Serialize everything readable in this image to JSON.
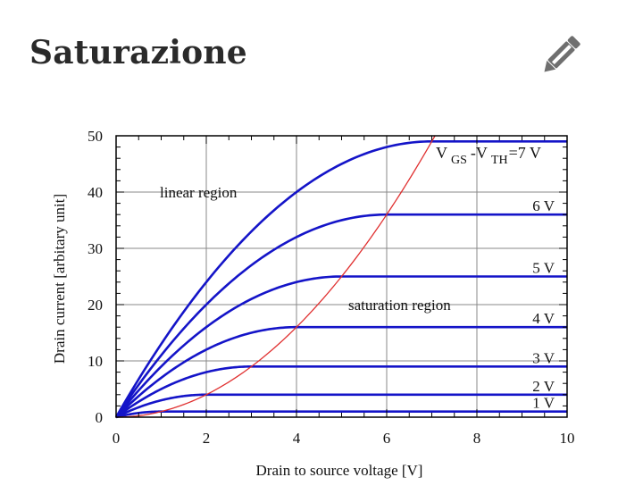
{
  "page": {
    "title": "Saturazione",
    "edit_icon": "pencil-icon",
    "edit_color": "#6f6f6f"
  },
  "chart_data": {
    "type": "line",
    "title": "",
    "xlabel": "Drain to source voltage [V]",
    "ylabel": "Drain current [arbitary unit]",
    "xlim": [
      0,
      10
    ],
    "ylim": [
      0,
      50
    ],
    "xticks": [
      0,
      2,
      4,
      6,
      8,
      10
    ],
    "yticks": [
      0,
      10,
      20,
      30,
      40,
      50
    ],
    "grid": true,
    "annotations": {
      "linear_region": "linear region",
      "saturation_region": "saturation region",
      "vgs_prefix": "V",
      "vgs_sub": "GS",
      "vgs_mid": "-V",
      "vth_sub": "TH",
      "vgs_suffix": "=7 V"
    },
    "colors": {
      "curves": "#1414c8",
      "boundary": "#e03030",
      "grid": "#888888"
    },
    "series": [
      {
        "label": "1 V",
        "vov": 1,
        "saturation_current": 1
      },
      {
        "label": "2 V",
        "vov": 2,
        "saturation_current": 4
      },
      {
        "label": "3 V",
        "vov": 3,
        "saturation_current": 9
      },
      {
        "label": "4 V",
        "vov": 4,
        "saturation_current": 16
      },
      {
        "label": "5 V",
        "vov": 5,
        "saturation_current": 25
      },
      {
        "label": "6 V",
        "vov": 6,
        "saturation_current": 36
      },
      {
        "label": "",
        "vov": 7,
        "saturation_current": 49
      }
    ],
    "boundary": {
      "description_formula": "I = V^2",
      "points_x": [
        0,
        1,
        2,
        3,
        4,
        5,
        6,
        7
      ]
    }
  }
}
